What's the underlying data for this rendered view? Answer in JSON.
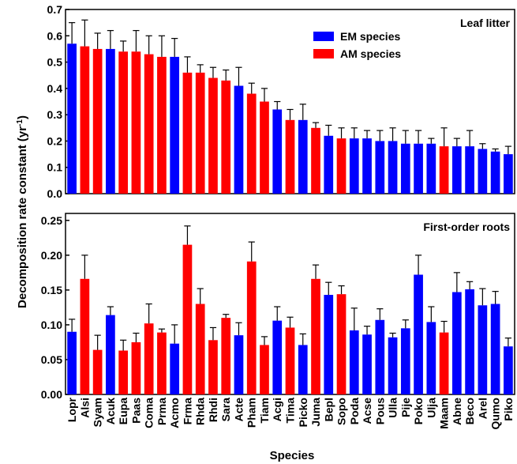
{
  "colors": {
    "EM": "#0000ff",
    "AM": "#ff0000",
    "errorbar": "#000000"
  },
  "legend": [
    {
      "key": "EM",
      "label": "EM species"
    },
    {
      "key": "AM",
      "label": "AM species"
    }
  ],
  "shared": {
    "ylabel_main": "Decomposition rate constant (yr",
    "ylabel_sup": "-1",
    "ylabel_close": ")",
    "xlabel": "Species"
  },
  "chart_data": [
    {
      "type": "bar",
      "title": "Leaf litter",
      "ylim": [
        0,
        0.7
      ],
      "yticks": [
        "0.0",
        "0.1",
        "0.2",
        "0.3",
        "0.4",
        "0.5",
        "0.6",
        "0.7"
      ],
      "legend_position": "top-center",
      "categories": [
        "Lopr",
        "Alsi",
        "Syam",
        "Acuk",
        "Eupa",
        "Paas",
        "Coma",
        "Prma",
        "Acmo",
        "Frma",
        "Rhda",
        "Rhdi",
        "Sara",
        "Acte",
        "Pham",
        "Tiam",
        "Acgi",
        "Tima",
        "Picko",
        "Juma",
        "Bepl",
        "Sopo",
        "Poda",
        "Acse",
        "Pous",
        "Ulla",
        "Pije",
        "Poko",
        "Ulja",
        "Maam",
        "Abne",
        "Beco",
        "Arel",
        "Qumo",
        "Piko"
      ],
      "groups": [
        "EM",
        "AM",
        "AM",
        "EM",
        "AM",
        "AM",
        "AM",
        "AM",
        "EM",
        "AM",
        "AM",
        "AM",
        "AM",
        "EM",
        "AM",
        "AM",
        "EM",
        "AM",
        "EM",
        "AM",
        "EM",
        "AM",
        "EM",
        "EM",
        "EM",
        "EM",
        "EM",
        "EM",
        "EM",
        "AM",
        "EM",
        "EM",
        "EM",
        "EM",
        "EM"
      ],
      "values": [
        0.57,
        0.56,
        0.55,
        0.55,
        0.54,
        0.54,
        0.53,
        0.52,
        0.52,
        0.46,
        0.46,
        0.44,
        0.43,
        0.41,
        0.38,
        0.35,
        0.32,
        0.28,
        0.28,
        0.25,
        0.22,
        0.21,
        0.21,
        0.21,
        0.2,
        0.2,
        0.19,
        0.19,
        0.19,
        0.18,
        0.18,
        0.18,
        0.17,
        0.16,
        0.15
      ],
      "errors": [
        0.08,
        0.1,
        0.06,
        0.07,
        0.04,
        0.08,
        0.07,
        0.08,
        0.07,
        0.06,
        0.03,
        0.04,
        0.04,
        0.07,
        0.04,
        0.05,
        0.03,
        0.04,
        0.06,
        0.02,
        0.04,
        0.04,
        0.04,
        0.03,
        0.04,
        0.05,
        0.05,
        0.05,
        0.02,
        0.07,
        0.03,
        0.06,
        0.02,
        0.01,
        0.03
      ]
    },
    {
      "type": "bar",
      "title": "First-order roots",
      "ylim": [
        0,
        0.26
      ],
      "yticks": [
        "0.00",
        "0.05",
        "0.10",
        "0.15",
        "0.20",
        "0.25"
      ],
      "categories": [
        "Lopr",
        "Alsi",
        "Syam",
        "Acuk",
        "Eupa",
        "Paas",
        "Coma",
        "Prma",
        "Acmo",
        "Frma",
        "Rhda",
        "Rhdi",
        "Sara",
        "Acte",
        "Pham",
        "Tiam",
        "Acgi",
        "Tima",
        "Picko",
        "Juma",
        "Bepl",
        "Sopo",
        "Poda",
        "Acse",
        "Pous",
        "Ulla",
        "Pije",
        "Poko",
        "Ulja",
        "Maam",
        "Abne",
        "Beco",
        "Arel",
        "Qumo",
        "Piko"
      ],
      "groups": [
        "EM",
        "AM",
        "AM",
        "EM",
        "AM",
        "AM",
        "AM",
        "AM",
        "EM",
        "AM",
        "AM",
        "AM",
        "AM",
        "EM",
        "AM",
        "AM",
        "EM",
        "AM",
        "EM",
        "AM",
        "EM",
        "AM",
        "EM",
        "EM",
        "EM",
        "EM",
        "EM",
        "EM",
        "EM",
        "AM",
        "EM",
        "EM",
        "EM",
        "EM",
        "EM"
      ],
      "values": [
        0.09,
        0.166,
        0.064,
        0.114,
        0.063,
        0.075,
        0.102,
        0.089,
        0.073,
        0.215,
        0.13,
        0.078,
        0.11,
        0.085,
        0.191,
        0.071,
        0.106,
        0.096,
        0.071,
        0.166,
        0.143,
        0.144,
        0.092,
        0.086,
        0.107,
        0.082,
        0.095,
        0.172,
        0.104,
        0.089,
        0.147,
        0.151,
        0.128,
        0.13,
        0.069
      ],
      "errors": [
        0.018,
        0.034,
        0.021,
        0.012,
        0.015,
        0.013,
        0.028,
        0.005,
        0.027,
        0.027,
        0.022,
        0.018,
        0.005,
        0.018,
        0.028,
        0.012,
        0.02,
        0.015,
        0.016,
        0.02,
        0.018,
        0.012,
        0.032,
        0.012,
        0.016,
        0.006,
        0.012,
        0.028,
        0.022,
        0.016,
        0.028,
        0.011,
        0.024,
        0.018,
        0.012
      ]
    }
  ]
}
